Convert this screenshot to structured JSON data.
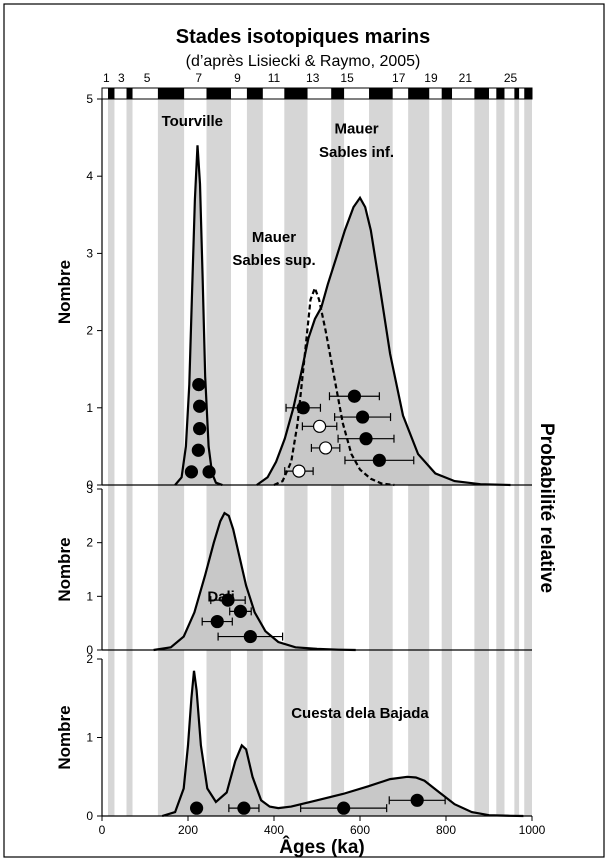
{
  "chart_data": {
    "type": "area",
    "title": "Stades isotopiques marins",
    "subtitle": "(d’après Lisiecki & Raymo, 2005)",
    "xlabel": "Âges (ka)",
    "right_label": "Probabilité relative",
    "xlim": [
      0,
      1000
    ],
    "x_ticks": [
      "0",
      "200",
      "400",
      "600",
      "800",
      "1000"
    ],
    "mis_stages": {
      "labels": [
        "1",
        "3",
        "5",
        "7",
        "9",
        "11",
        "13",
        "15",
        "17",
        "19",
        "21",
        "25"
      ],
      "label_ages": [
        10,
        45,
        105,
        225,
        315,
        400,
        490,
        570,
        690,
        765,
        845,
        950
      ],
      "glacial_bands": [
        [
          14,
          29
        ],
        [
          57,
          71
        ],
        [
          130,
          191
        ],
        [
          243,
          300
        ],
        [
          337,
          374
        ],
        [
          424,
          478
        ],
        [
          533,
          563
        ],
        [
          621,
          676
        ],
        [
          712,
          761
        ],
        [
          790,
          814
        ],
        [
          866,
          900
        ],
        [
          917,
          936
        ],
        [
          959,
          970
        ],
        [
          982,
          1000
        ]
      ]
    },
    "panels": [
      {
        "ylabel": "Nombre",
        "ylim": [
          0,
          5
        ],
        "y_ticks": [
          "0",
          "1",
          "2",
          "3",
          "4",
          "5"
        ],
        "series": [
          {
            "name": "Tourville",
            "style": "solid-filled",
            "x": [
              170,
              185,
              195,
              203,
              210,
              216,
              222,
              228,
              234,
              240,
              248,
              256,
              265,
              280
            ],
            "y": [
              0,
              0.1,
              0.5,
              1.3,
              2.6,
              3.7,
              4.4,
              3.9,
              2.7,
              1.4,
              0.5,
              0.15,
              0.03,
              0
            ]
          },
          {
            "name": "Mauer Sables inf.",
            "style": "solid-filled",
            "x": [
              360,
              385,
              405,
              425,
              445,
              465,
              480,
              495,
              510,
              525,
              545,
              565,
              585,
              600,
              612,
              625,
              645,
              670,
              700,
              735,
              775,
              820,
              880,
              950
            ],
            "y": [
              0,
              0.1,
              0.3,
              0.6,
              1.0,
              1.5,
              1.9,
              2.15,
              2.3,
              2.6,
              2.95,
              3.3,
              3.6,
              3.72,
              3.6,
              3.3,
              2.6,
              1.7,
              0.9,
              0.4,
              0.15,
              0.05,
              0.01,
              0
            ]
          },
          {
            "name": "Mauer Sables sup.",
            "style": "dashed",
            "x": [
              400,
              420,
              440,
              455,
              470,
              485,
              495,
              505,
              520,
              540,
              560,
              580,
              600,
              625,
              650,
              680
            ],
            "y": [
              0,
              0.05,
              0.3,
              0.8,
              1.6,
              2.4,
              2.55,
              2.4,
              2.0,
              1.4,
              0.8,
              0.4,
              0.2,
              0.08,
              0.02,
              0
            ]
          }
        ],
        "points": [
          {
            "x": 225,
            "y": 1.3,
            "fill": "black"
          },
          {
            "x": 227,
            "y": 1.02,
            "fill": "black"
          },
          {
            "x": 227,
            "y": 0.73,
            "fill": "black"
          },
          {
            "x": 224,
            "y": 0.45,
            "fill": "black"
          },
          {
            "x": 208,
            "y": 0.17,
            "fill": "black"
          },
          {
            "x": 249,
            "y": 0.17,
            "fill": "black"
          },
          {
            "x": 468,
            "y": 1.0,
            "fill": "black",
            "err": 40
          },
          {
            "x": 587,
            "y": 1.15,
            "fill": "black",
            "err": 58
          },
          {
            "x": 606,
            "y": 0.88,
            "fill": "black",
            "err": 65
          },
          {
            "x": 614,
            "y": 0.6,
            "fill": "black",
            "err": 65
          },
          {
            "x": 645,
            "y": 0.32,
            "fill": "black",
            "err": 80
          },
          {
            "x": 506,
            "y": 0.76,
            "fill": "white",
            "err": 40
          },
          {
            "x": 520,
            "y": 0.48,
            "fill": "white",
            "err": 33
          },
          {
            "x": 458,
            "y": 0.18,
            "fill": "white",
            "err": 33
          }
        ],
        "labels": [
          {
            "text": "Tourville",
            "x": 210,
            "y": 4.65
          },
          {
            "text": "Mauer",
            "x": 592,
            "y": 4.55
          },
          {
            "text": "Sables inf.",
            "x": 592,
            "y": 4.25
          },
          {
            "text": "Mauer",
            "x": 400,
            "y": 3.15
          },
          {
            "text": "Sables sup.",
            "x": 400,
            "y": 2.85
          }
        ]
      },
      {
        "ylabel": "Nombre",
        "ylim": [
          0,
          3
        ],
        "y_ticks": [
          "0",
          "1",
          "2",
          "3"
        ],
        "series": [
          {
            "name": "Dali",
            "style": "solid-filled",
            "x": [
              120,
              160,
              190,
              215,
              240,
              260,
              275,
              285,
              295,
              305,
              318,
              335,
              355,
              380,
              410,
              450,
              500,
              550,
              590
            ],
            "y": [
              0,
              0.05,
              0.25,
              0.7,
              1.4,
              2.0,
              2.4,
              2.55,
              2.5,
              2.25,
              1.8,
              1.2,
              0.7,
              0.35,
              0.15,
              0.05,
              0.02,
              0.005,
              0
            ]
          }
        ],
        "points": [
          {
            "x": 293,
            "y": 0.93,
            "fill": "black",
            "err": 40
          },
          {
            "x": 322,
            "y": 0.72,
            "fill": "black",
            "err": 25
          },
          {
            "x": 268,
            "y": 0.53,
            "fill": "black",
            "err": 35
          },
          {
            "x": 345,
            "y": 0.25,
            "fill": "black",
            "err": 75
          }
        ],
        "labels": [
          {
            "text": "Dali",
            "x": 277,
            "y": 0.9
          }
        ]
      },
      {
        "ylabel": "Nombre",
        "ylim": [
          0,
          2
        ],
        "y_ticks": [
          "0",
          "1",
          "2"
        ],
        "series": [
          {
            "name": "Cuesta dela Bajada",
            "style": "solid-filled",
            "x": [
              140,
              170,
              190,
              200,
              208,
              214,
              220,
              230,
              245,
              265,
              290,
              310,
              325,
              335,
              350,
              370,
              390,
              410,
              440,
              500,
              560,
              620,
              670,
              710,
              730,
              750,
              780,
              820,
              860,
              900,
              950,
              980
            ],
            "y": [
              0,
              0.05,
              0.35,
              0.9,
              1.5,
              1.85,
              1.6,
              0.9,
              0.35,
              0.18,
              0.3,
              0.7,
              0.9,
              0.85,
              0.5,
              0.2,
              0.12,
              0.1,
              0.12,
              0.2,
              0.28,
              0.38,
              0.47,
              0.5,
              0.49,
              0.45,
              0.32,
              0.15,
              0.05,
              0.01,
              0.003,
              0
            ]
          }
        ],
        "points": [
          {
            "x": 220,
            "y": 0.1,
            "fill": "black"
          },
          {
            "x": 330,
            "y": 0.1,
            "fill": "black",
            "err": 35
          },
          {
            "x": 562,
            "y": 0.1,
            "fill": "black",
            "err": 100
          },
          {
            "x": 733,
            "y": 0.2,
            "fill": "black",
            "err": 65
          }
        ],
        "labels": [
          {
            "text": "Cuesta dela Bajada",
            "x": 600,
            "y": 1.25
          }
        ]
      }
    ],
    "colors": {
      "glacial": "#d6d6d6",
      "fill": "#c8c8c8",
      "stroke": "#000000"
    }
  }
}
